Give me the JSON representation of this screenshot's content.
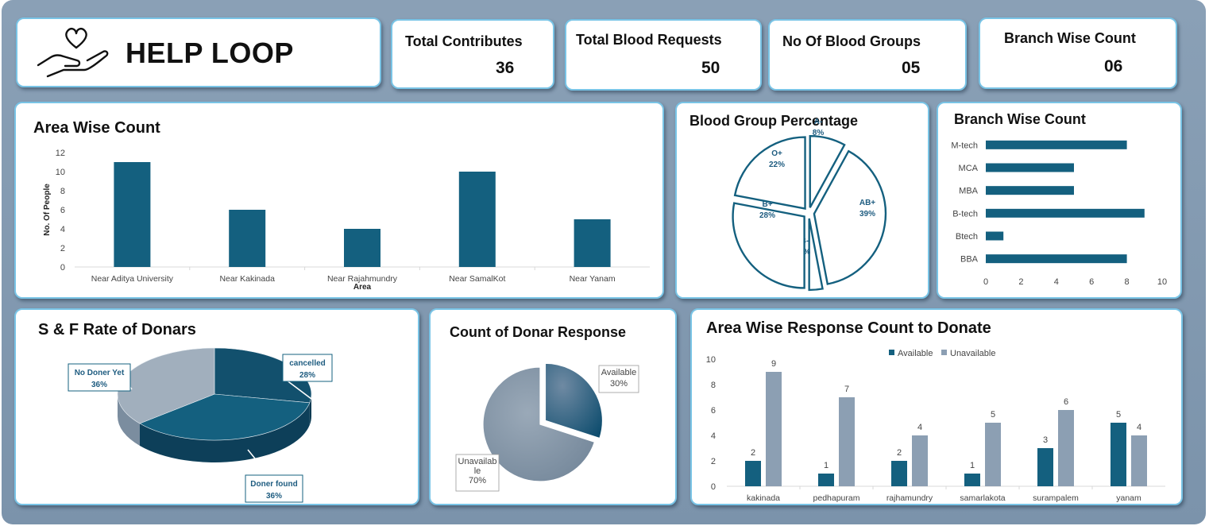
{
  "header": {
    "title": "HELP LOOP",
    "logo_icon": "heart-hand-icon"
  },
  "kpis": [
    {
      "label": "Total Contributes",
      "value": "36"
    },
    {
      "label": "Total Blood Requests",
      "value": "50"
    },
    {
      "label": "No Of Blood Groups",
      "value": "05"
    },
    {
      "label": "Branch Wise Count",
      "value": "06"
    }
  ],
  "colors": {
    "primary": "#14607f",
    "secondary": "#8c9fb3",
    "light": "#a1afbd",
    "border": "#79c4e6"
  },
  "chart_data": [
    {
      "id": "area_wise",
      "type": "bar",
      "title": "Area Wise Count",
      "categories": [
        "Near Aditya University",
        "Near Kakinada",
        "Near Rajahmundry",
        "Near SamalKot",
        "Near Yanam"
      ],
      "values": [
        11,
        6,
        4,
        10,
        5
      ],
      "xlabel": "Area",
      "ylabel": "No. Of People",
      "ylim": [
        0,
        12
      ],
      "yticks": [
        0,
        2,
        4,
        6,
        8,
        10,
        12
      ],
      "grid": false
    },
    {
      "id": "blood_group",
      "type": "pie",
      "title": "Blood Group Percentage",
      "slices": [
        {
          "label": "A-",
          "percent": "8%",
          "value": 8
        },
        {
          "label": "AB+",
          "percent": "39%",
          "value": 39
        },
        {
          "label": "B-",
          "percent": "3%",
          "value": 3
        },
        {
          "label": "B+",
          "percent": "28%",
          "value": 28
        },
        {
          "label": "O+",
          "percent": "22%",
          "value": 22
        }
      ]
    },
    {
      "id": "branch_wise",
      "type": "bar",
      "orientation": "horizontal",
      "title": "Branch Wise Count",
      "categories": [
        "M-tech",
        "MCA",
        "MBA",
        "B-tech",
        "Btech",
        "BBA"
      ],
      "values": [
        8,
        5,
        5,
        9,
        1,
        8
      ],
      "xlim": [
        0,
        10
      ],
      "xticks": [
        0,
        2,
        4,
        6,
        8,
        10
      ]
    },
    {
      "id": "sf_rate",
      "type": "pie",
      "style": "3d",
      "title": "S & F Rate of Donars",
      "slices": [
        {
          "label": "cancelled",
          "percent": "28%",
          "value": 28
        },
        {
          "label": "Doner found",
          "percent": "36%",
          "value": 36
        },
        {
          "label": "No Doner Yet",
          "percent": "36%",
          "value": 36
        }
      ]
    },
    {
      "id": "donor_response",
      "type": "pie",
      "title": "Count of Donar Response",
      "slices": [
        {
          "label": "Available",
          "percent": "30%",
          "value": 30
        },
        {
          "label": "Unavailab le",
          "percent": "70%",
          "value": 70
        }
      ]
    },
    {
      "id": "area_response",
      "type": "bar",
      "title": "Area Wise Response Count to Donate",
      "categories": [
        "kakinada",
        "pedhapuram",
        "rajhamundry",
        "samarlakota",
        "surampalem",
        "yanam"
      ],
      "series": [
        {
          "name": "Available",
          "values": [
            2,
            1,
            2,
            1,
            3,
            5
          ]
        },
        {
          "name": "Unavailable",
          "values": [
            9,
            7,
            4,
            5,
            6,
            4
          ]
        }
      ],
      "ylim": [
        0,
        10
      ],
      "yticks": [
        0,
        2,
        4,
        6,
        8,
        10
      ],
      "legend": "top-center"
    }
  ]
}
